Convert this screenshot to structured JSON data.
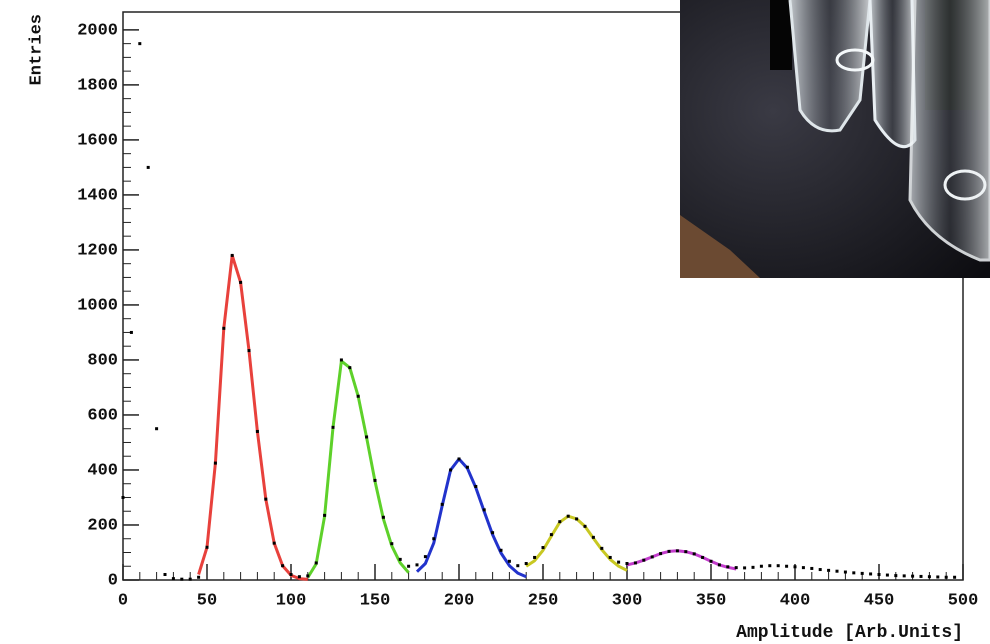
{
  "chart_data": {
    "type": "scatter",
    "x_label": "Amplitude [Arb.Units]",
    "y_label": "Entries",
    "xlim": [
      0,
      500
    ],
    "ylim": [
      0,
      2065
    ],
    "xticks": [
      0,
      50,
      100,
      150,
      200,
      250,
      300,
      350,
      400,
      450,
      500
    ],
    "yticks": [
      0,
      200,
      400,
      600,
      800,
      1000,
      1200,
      1400,
      1600,
      1800,
      2000
    ],
    "series": [
      {
        "style": "points",
        "color": "#000000",
        "x": [
          0,
          5,
          10,
          15,
          20,
          25,
          30,
          35,
          40,
          45,
          50,
          55,
          60,
          65,
          70,
          75,
          80,
          85,
          90,
          95,
          100,
          105,
          110,
          115,
          120,
          125,
          130,
          135,
          140,
          145,
          150,
          155,
          160,
          165,
          170,
          175,
          180,
          185,
          190,
          195,
          200,
          205,
          210,
          215,
          220,
          225,
          230,
          235,
          240,
          245,
          250,
          255,
          260,
          265,
          270,
          275,
          280,
          285,
          290,
          295,
          300,
          305,
          310,
          315,
          320,
          325,
          330,
          335,
          340,
          345,
          350,
          355,
          360,
          365,
          370,
          375,
          380,
          385,
          390,
          395,
          400,
          405,
          410,
          415,
          420,
          425,
          430,
          435,
          440,
          445,
          450,
          455,
          460,
          465,
          470,
          475,
          480,
          485,
          490,
          495
        ],
        "values": [
          300,
          900,
          1950,
          1500,
          550,
          20,
          5,
          3,
          3,
          10,
          119,
          425,
          915,
          1180,
          1082,
          834,
          540,
          294,
          134,
          52,
          20,
          12,
          15,
          62,
          235,
          555,
          800,
          772,
          668,
          520,
          362,
          228,
          132,
          75,
          50,
          55,
          85,
          150,
          275,
          400,
          440,
          410,
          340,
          255,
          172,
          108,
          68,
          52,
          60,
          82,
          118,
          165,
          212,
          232,
          222,
          195,
          155,
          115,
          82,
          65,
          60,
          62,
          72,
          84,
          96,
          104,
          106,
          103,
          95,
          82,
          68,
          55,
          48,
          45,
          44,
          46,
          50,
          52,
          52,
          50,
          48,
          45,
          42,
          38,
          35,
          32,
          29,
          26,
          24,
          22,
          20,
          18,
          16,
          15,
          14,
          13,
          12,
          11,
          10,
          10
        ]
      },
      {
        "style": "line",
        "color": "#e8413c",
        "x": [
          45,
          50,
          55,
          60,
          65,
          70,
          75,
          80,
          85,
          90,
          95,
          100,
          105,
          110
        ],
        "values": [
          20,
          119,
          425,
          915,
          1180,
          1082,
          834,
          540,
          294,
          134,
          52,
          17,
          5,
          2
        ]
      },
      {
        "style": "line",
        "color": "#5ed12a",
        "x": [
          110,
          115,
          120,
          125,
          130,
          135,
          140,
          145,
          150,
          155,
          160,
          165,
          170
        ],
        "values": [
          9,
          59,
          232,
          554,
          796,
          772,
          668,
          518,
          359,
          222,
          124,
          62,
          27
        ]
      },
      {
        "style": "line",
        "color": "#2233cc",
        "x": [
          175,
          180,
          185,
          190,
          195,
          200,
          205,
          210,
          215,
          220,
          225,
          230,
          235,
          240
        ],
        "values": [
          30,
          60,
          135,
          270,
          400,
          440,
          406,
          336,
          249,
          165,
          98,
          52,
          25,
          12
        ]
      },
      {
        "style": "line",
        "color": "#c8c822",
        "x": [
          240,
          245,
          250,
          255,
          260,
          265,
          270,
          275,
          280,
          285,
          290,
          295,
          300
        ],
        "values": [
          50,
          70,
          108,
          160,
          210,
          232,
          222,
          195,
          152,
          110,
          75,
          50,
          35
        ]
      },
      {
        "style": "line",
        "color": "#c33ccc",
        "x": [
          300,
          305,
          310,
          315,
          320,
          325,
          330,
          335,
          340,
          345,
          350,
          355,
          360,
          365
        ],
        "values": [
          55,
          62,
          72,
          84,
          96,
          104,
          106,
          103,
          95,
          82,
          68,
          55,
          46,
          40
        ]
      }
    ]
  }
}
